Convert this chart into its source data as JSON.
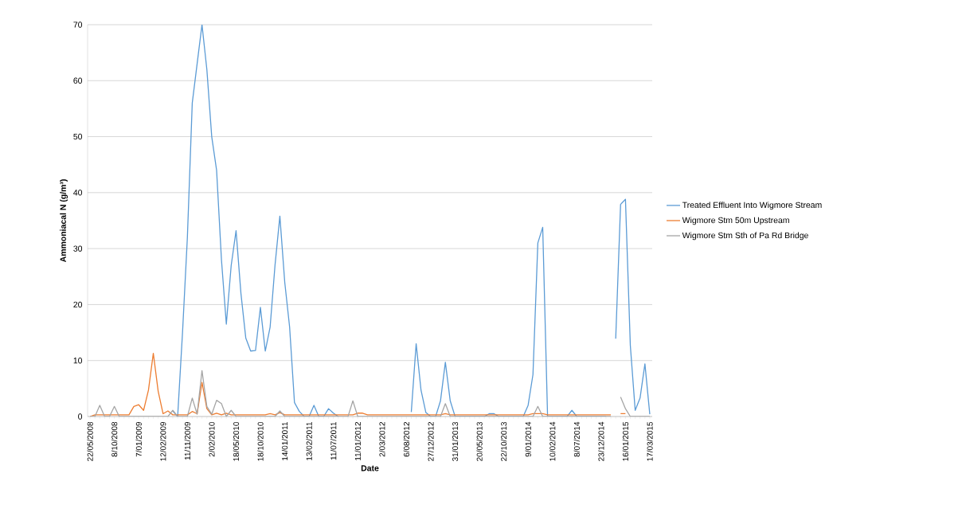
{
  "chart_data": {
    "type": "line",
    "xlabel": "Date",
    "ylabel": "Ammoniacal N (g/m³)",
    "categories": [
      "22/05/2008",
      null,
      null,
      null,
      null,
      "8/10/2008",
      null,
      null,
      null,
      null,
      "7/01/2009",
      null,
      null,
      null,
      null,
      "12/02/2009",
      null,
      null,
      null,
      null,
      "11/11/2009",
      null,
      null,
      null,
      null,
      "2/02/2010",
      null,
      null,
      null,
      null,
      "18/05/2010",
      null,
      null,
      null,
      null,
      "18/10/2010",
      null,
      null,
      null,
      null,
      "14/01/2011",
      null,
      null,
      null,
      null,
      "13/02/2011",
      null,
      null,
      null,
      null,
      "11/07/2011",
      null,
      null,
      null,
      null,
      "11/01/2012",
      null,
      null,
      null,
      null,
      "2/03/2012",
      null,
      null,
      null,
      null,
      "6/08/2012",
      null,
      null,
      null,
      null,
      "27/12/2012",
      null,
      null,
      null,
      null,
      "31/01/2013",
      null,
      null,
      null,
      null,
      "20/05/2013",
      null,
      null,
      null,
      null,
      "22/10/2013",
      null,
      null,
      null,
      null,
      "9/01/2014",
      null,
      null,
      null,
      null,
      "10/02/2014",
      null,
      null,
      null,
      null,
      "8/07/2014",
      null,
      null,
      null,
      null,
      "23/12/2014",
      null,
      null,
      null,
      null,
      "16/01/2015",
      null,
      null,
      null,
      null,
      "17/03/2015"
    ],
    "series": [
      {
        "name": "Treated Effluent Into Wigmore Stream",
        "color": "#5b9bd5",
        "values": [
          null,
          null,
          null,
          null,
          null,
          null,
          null,
          null,
          null,
          null,
          null,
          null,
          null,
          null,
          null,
          null,
          null,
          1,
          0,
          15,
          32,
          56,
          63,
          70,
          62,
          50,
          44,
          28,
          16.5,
          27,
          33.2,
          22,
          14,
          11.7,
          11.8,
          19.5,
          11.7,
          16,
          27,
          35.8,
          24,
          16,
          2.5,
          0.9,
          0,
          0,
          2,
          0,
          0,
          1.4,
          0.6,
          0,
          null,
          null,
          null,
          null,
          null,
          null,
          null,
          null,
          null,
          null,
          null,
          null,
          null,
          null,
          0.8,
          13,
          4.7,
          0.7,
          0,
          0,
          2.8,
          9.7,
          2.8,
          0,
          0,
          0,
          0,
          0,
          0,
          0,
          0.5,
          0.5,
          0,
          0,
          0,
          0,
          0,
          0,
          2,
          7.5,
          31,
          33.8,
          0,
          0,
          0,
          0,
          0,
          1.1,
          0,
          0,
          0,
          0,
          0,
          0,
          0,
          null,
          13.9,
          37.9,
          38.8,
          12.7,
          1.1,
          3.3,
          9.4,
          0.4
        ]
      },
      {
        "name": "Wigmore Stm 50m Upstream",
        "color": "#ed7d31",
        "values": [
          0,
          0.3,
          0.3,
          0.3,
          0.3,
          0.3,
          0.3,
          0.3,
          0.3,
          1.8,
          2.1,
          1.1,
          4.7,
          11.3,
          4.5,
          0.5,
          1,
          0.3,
          0.3,
          0.3,
          0.3,
          0.9,
          0.5,
          6.1,
          1.4,
          0.3,
          0.6,
          0.3,
          0.6,
          0.3,
          0.3,
          0.3,
          0.3,
          0.3,
          0.3,
          0.3,
          0.3,
          0.5,
          0.3,
          0.7,
          0.3,
          0.3,
          0.3,
          0.3,
          0.3,
          0.3,
          0.3,
          0.3,
          0.3,
          0.3,
          0.3,
          0.3,
          0.3,
          0.3,
          0.3,
          0.6,
          0.6,
          0.3,
          0.3,
          0.3,
          0.3,
          0.3,
          0.3,
          0.3,
          0.3,
          0.3,
          0.3,
          0.3,
          0.3,
          0.3,
          0.3,
          0.3,
          0.3,
          0.5,
          0.3,
          0.3,
          0.3,
          0.3,
          0.3,
          0.3,
          0.3,
          0.3,
          0.3,
          0.3,
          0.3,
          0.3,
          0.3,
          0.3,
          0.3,
          0.3,
          0.3,
          0.5,
          0.5,
          0.5,
          0.3,
          0.3,
          0.3,
          0.3,
          0.3,
          0.3,
          0.3,
          0.3,
          0.3,
          0.3,
          0.3,
          0.3,
          0.3,
          0.3,
          null,
          0.5,
          0.5,
          null,
          null,
          null,
          null,
          null
        ]
      },
      {
        "name": "Wigmore Stm Sth of Pa Rd Bridge",
        "color": "#a5a5a5",
        "values": [
          0,
          0,
          2,
          0,
          0,
          1.8,
          0,
          0,
          0,
          0,
          0,
          0,
          0,
          0,
          0,
          0,
          0,
          1.1,
          0,
          0,
          0,
          3.3,
          0.4,
          8.2,
          1.8,
          0.4,
          2.9,
          2.3,
          0,
          1.1,
          0,
          0,
          0,
          0,
          0,
          0,
          0,
          0,
          0,
          1,
          0,
          0,
          0,
          0,
          0,
          0,
          0,
          0,
          0,
          0,
          0,
          0,
          0,
          0,
          2.8,
          0,
          0,
          0,
          0,
          0,
          0,
          0,
          0,
          0,
          0,
          0,
          0,
          0,
          0,
          0,
          0,
          0,
          0,
          2.3,
          0,
          0,
          0,
          0,
          0,
          0,
          0,
          0,
          0,
          0,
          0,
          0,
          0,
          0,
          0,
          0,
          0,
          0,
          1.8,
          0,
          0,
          0,
          0,
          0,
          0,
          0,
          0,
          0,
          0,
          0,
          0,
          0,
          0,
          0,
          null,
          3.5,
          1.4,
          0,
          0,
          0,
          0,
          0
        ]
      }
    ],
    "ylim": [
      0,
      70
    ],
    "yticks": [
      0,
      10,
      20,
      30,
      40,
      50,
      60,
      70
    ],
    "grid": "y",
    "legend": "right",
    "marker": "none",
    "line_style": "solid"
  }
}
